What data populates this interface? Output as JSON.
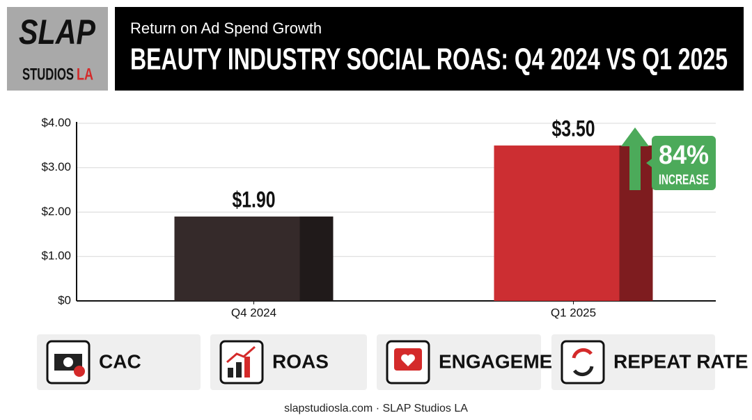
{
  "logo": {
    "top": "SLAP",
    "bottom": "STUDIOS",
    "accent": "LA"
  },
  "header": {
    "subtitle": "Return on Ad Spend Growth",
    "title": "BEAUTY INDUSTRY SOCIAL ROAS: Q4 2024 VS Q1 2025"
  },
  "chart_data": {
    "type": "bar",
    "categories": [
      "Q4 2024",
      "Q1 2025"
    ],
    "values": [
      1.9,
      3.5
    ],
    "value_labels": [
      "$1.90",
      "$3.50"
    ],
    "colors": [
      "#352a2a",
      "#cc2e32"
    ],
    "ylim": [
      0,
      4
    ],
    "yticks": [
      {
        "value": 0,
        "label": "$0"
      },
      {
        "value": 1,
        "label": "$1.00"
      },
      {
        "value": 2,
        "label": "$2.00"
      },
      {
        "value": 3,
        "label": "$3.00"
      },
      {
        "value": 4,
        "label": "$4.00"
      }
    ],
    "grid": true,
    "annotation": {
      "big": "84%",
      "small": "INCREASE",
      "color": "#4caa5a"
    }
  },
  "cards": [
    "CAC",
    "ROAS",
    "ENGAGEMENT",
    "REPEAT RATE"
  ],
  "footer": "slapstudiosla.com · SLAP Studios LA"
}
